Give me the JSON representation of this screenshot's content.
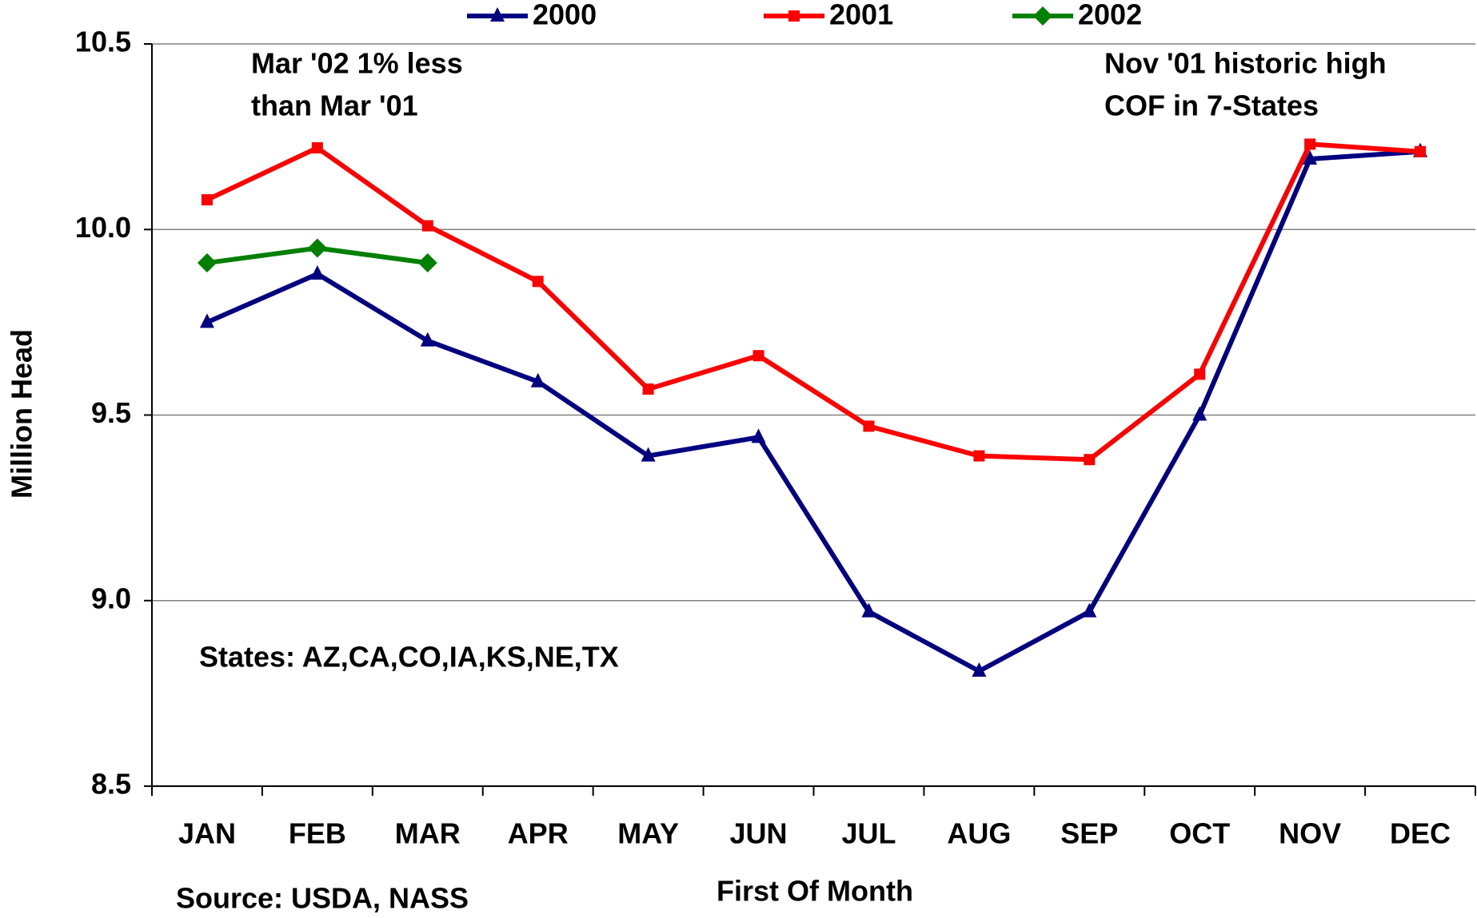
{
  "chart_data": {
    "type": "line",
    "x_label": "First Of Month",
    "y_label": "Million Head",
    "annotations": [
      "Mar '02  1% less",
      "than  Mar '01",
      "Nov '01 historic high",
      "COF in 7-States",
      "States: AZ,CA,CO,IA,KS,NE,TX",
      "Source: USDA, NASS"
    ],
    "categories": [
      "JAN",
      "FEB",
      "MAR",
      "APR",
      "MAY",
      "JUN",
      "JUL",
      "AUG",
      "SEP",
      "OCT",
      "NOV",
      "DEC"
    ],
    "series": [
      {
        "name": "2000",
        "color": "#000080",
        "marker": "triangle",
        "values": [
          9.75,
          9.88,
          9.7,
          9.59,
          9.39,
          9.44,
          8.97,
          8.81,
          8.97,
          9.5,
          10.19,
          10.21
        ]
      },
      {
        "name": "2001",
        "color": "#ff0000",
        "marker": "square",
        "values": [
          10.08,
          10.22,
          10.01,
          9.86,
          9.57,
          9.66,
          9.47,
          9.39,
          9.38,
          9.61,
          10.23,
          10.21
        ]
      },
      {
        "name": "2002",
        "color": "#008000",
        "marker": "diamond",
        "values": [
          9.91,
          9.95,
          9.91,
          null,
          null,
          null,
          null,
          null,
          null,
          null,
          null,
          null
        ]
      }
    ],
    "ylim": [
      8.5,
      10.5
    ],
    "yticks": [
      8.5,
      {
        "value": 9,
        "label": "9.0"
      },
      9.5,
      {
        "value": 10,
        "label": "10.0"
      },
      10.5
    ],
    "grid": true,
    "legend": "top"
  }
}
